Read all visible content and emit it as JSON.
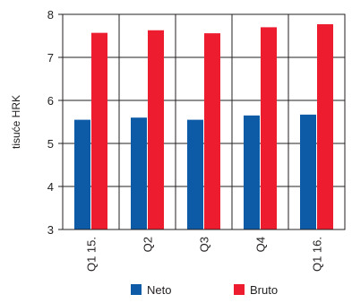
{
  "chart_data": {
    "type": "bar",
    "title": "",
    "xlabel": "",
    "ylabel": "tisuće HRK",
    "categories": [
      "Q1 15.",
      "Q2",
      "Q3",
      "Q4",
      "Q1 16."
    ],
    "series": [
      {
        "name": "Neto",
        "color": "#0d5aa6",
        "values": [
          5.55,
          5.6,
          5.55,
          5.65,
          5.67
        ]
      },
      {
        "name": "Bruto",
        "color": "#ed1c2e",
        "values": [
          7.57,
          7.63,
          7.56,
          7.7,
          7.77
        ]
      }
    ],
    "ylim": [
      3,
      8
    ],
    "yticks": [
      "3",
      "4",
      "5",
      "6",
      "7",
      "8"
    ],
    "grid": true,
    "legend": "bottom"
  }
}
